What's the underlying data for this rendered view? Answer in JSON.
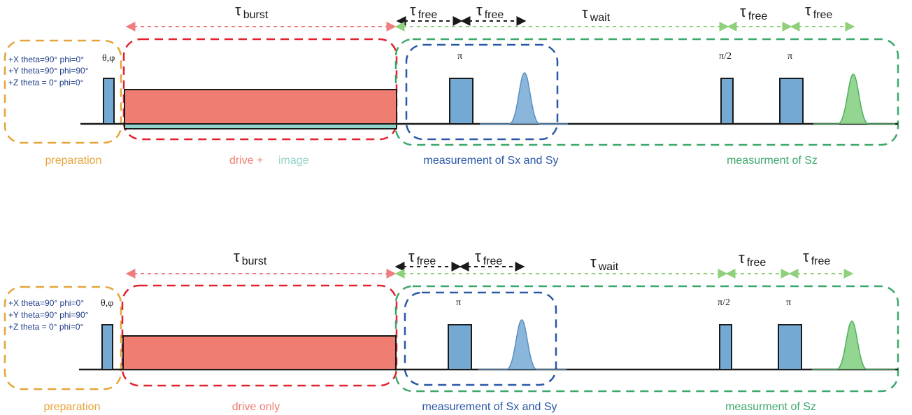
{
  "colors": {
    "preparation": "#e5a53a",
    "drive": "#e2222f",
    "drive_fill": "#ef7d72",
    "image_fill": "#8fd3c9",
    "measure_xy": "#2a58a8",
    "measure_z": "#3da86b",
    "pulse_fill": "#74a9d3",
    "tau_burst_arrow": "#ef7d7d",
    "tau_free_arrow": "#1a1a1a",
    "tau_wait_arrow": "#8fd07a",
    "gauss_blue": "#74a9d3",
    "gauss_green": "#7fcf7f",
    "axis": "#1a1a1a",
    "rotation_text": "#1f3d8a"
  },
  "top": {
    "tau_burst": {
      "symbol": "τ",
      "sub": "burst"
    },
    "tau_free_1": {
      "symbol": "τ",
      "sub": "free"
    },
    "tau_free_2": {
      "symbol": "τ",
      "sub": "free"
    },
    "tau_wait": {
      "symbol": "τ",
      "sub": "wait"
    },
    "tau_free_3": {
      "symbol": "τ",
      "sub": "free"
    },
    "tau_free_4": {
      "symbol": "τ",
      "sub": "free"
    },
    "rotations": [
      "+X theta=90° phi=0°",
      "+Y theta=90° phi=90°",
      "+Z theta = 0° phi=0°"
    ],
    "theta_phi": "θ,φ",
    "pi_1": "π",
    "pi_half": "π/2",
    "pi_2": "π",
    "label_preparation": "preparation",
    "label_drive": "drive +",
    "label_image": "image",
    "label_measure_xy": "measurement of Sx and Sy",
    "label_measure_z": "measurment of Sz"
  },
  "bottom": {
    "tau_burst": {
      "symbol": "τ",
      "sub": "burst"
    },
    "tau_free_1": {
      "symbol": "τ",
      "sub": "free"
    },
    "tau_free_2": {
      "symbol": "τ",
      "sub": "free"
    },
    "tau_wait": {
      "symbol": "τ",
      "sub": "wait"
    },
    "tau_free_3": {
      "symbol": "τ",
      "sub": "free"
    },
    "tau_free_4": {
      "symbol": "τ",
      "sub": "free"
    },
    "rotations": [
      "+X theta=90° phi=0°",
      "+Y theta=90° phi=90°",
      "+Z theta = 0° phi=0°"
    ],
    "theta_phi": "θ,φ",
    "pi_1": "π",
    "pi_half": "π/2",
    "pi_2": "π",
    "label_preparation": "preparation",
    "label_drive": "drive only",
    "label_measure_xy": "measurement of Sx and Sy",
    "label_measure_z": "measurment of Sz"
  }
}
